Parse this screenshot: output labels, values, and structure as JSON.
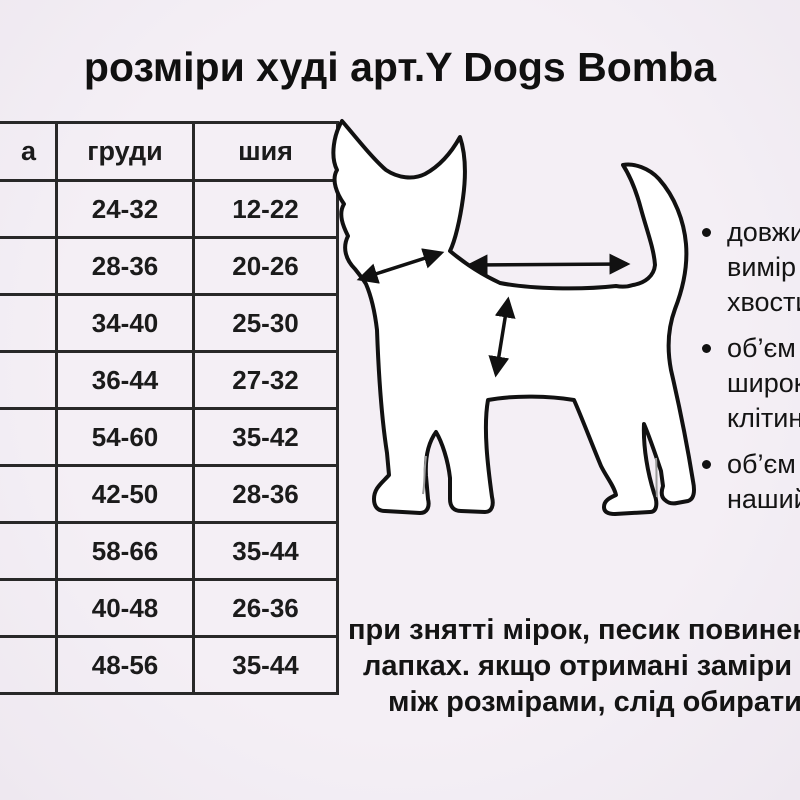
{
  "page": {
    "background_color": "#f2edf3",
    "text_color": "#161616",
    "border_color": "#282828"
  },
  "header": {
    "title": "розміри худі арт.Y Dogs Bomba"
  },
  "size_table": {
    "visible_column_headers": [
      "а",
      "груди",
      "шия"
    ],
    "rows": [
      [
        "",
        "24-32",
        "12-22"
      ],
      [
        "",
        "28-36",
        "20-26"
      ],
      [
        "",
        "34-40",
        "25-30"
      ],
      [
        "",
        "36-44",
        "27-32"
      ],
      [
        "",
        "54-60",
        "35-42"
      ],
      [
        "",
        "42-50",
        "28-36"
      ],
      [
        "",
        "58-66",
        "35-44"
      ],
      [
        "",
        "40-48",
        "26-36"
      ],
      [
        "",
        "48-56",
        "35-44"
      ]
    ]
  },
  "diagram": {
    "illustration": "dog-outline-illustration",
    "arrow_icons": [
      "back-length-arrow",
      "chest-depth-arrow",
      "neck-girth-arrow"
    ]
  },
  "measurement_notes": [
    {
      "lines": [
        "довжин",
        "вимір",
        "хвости"
      ]
    },
    {
      "lines": [
        "об’єм",
        "широк",
        "клітини"
      ]
    },
    {
      "lines": [
        "об’єм",
        "наший"
      ]
    }
  ],
  "bottom_note": {
    "lines": [
      "при знятті мірок, песик повинен с",
      "лапках. якщо отримані заміри пе",
      "між розмірами, слід обирати б"
    ]
  }
}
